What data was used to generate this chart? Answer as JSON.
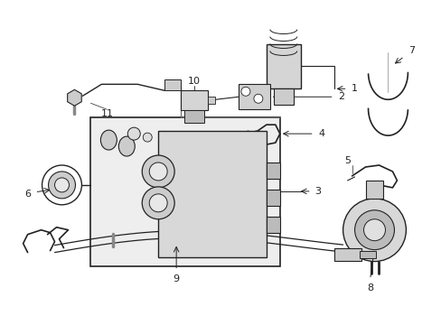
{
  "background_color": "#ffffff",
  "line_color": "#222222",
  "gray1": "#cccccc",
  "gray2": "#e8e8e8",
  "gray3": "#aaaaaa",
  "fig_width": 4.89,
  "fig_height": 3.6,
  "dpi": 100
}
